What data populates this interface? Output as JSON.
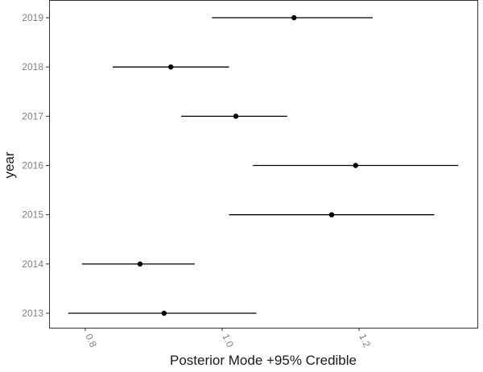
{
  "chart_data": {
    "type": "scatter",
    "orientation": "horizontal-interval",
    "xlabel": "Posterior Mode +95% Credible",
    "ylabel": "year",
    "xlim": [
      0.77,
      1.35
    ],
    "x_ticks": [
      0.8,
      1.0,
      1.2
    ],
    "x_tick_labels": [
      "0.8",
      "1.0",
      "1.2"
    ],
    "categories": [
      "2013",
      "2014",
      "2015",
      "2016",
      "2017",
      "2018",
      "2019"
    ],
    "points": [
      {
        "year": "2013",
        "mode": 0.915,
        "lower": 0.775,
        "upper": 1.05
      },
      {
        "year": "2014",
        "mode": 0.88,
        "lower": 0.795,
        "upper": 0.96
      },
      {
        "year": "2015",
        "mode": 1.16,
        "lower": 1.01,
        "upper": 1.31
      },
      {
        "year": "2016",
        "mode": 1.195,
        "lower": 1.045,
        "upper": 1.345
      },
      {
        "year": "2017",
        "mode": 1.02,
        "lower": 0.94,
        "upper": 1.095
      },
      {
        "year": "2018",
        "mode": 0.925,
        "lower": 0.84,
        "upper": 1.01
      },
      {
        "year": "2019",
        "mode": 1.105,
        "lower": 0.985,
        "upper": 1.22
      }
    ],
    "grid": false,
    "legend": "none",
    "colors": {
      "marks": "#000000",
      "panel_border": "#333333",
      "tick_labels": "#7f7f7f",
      "axis_title": "#1a1a1a"
    }
  }
}
